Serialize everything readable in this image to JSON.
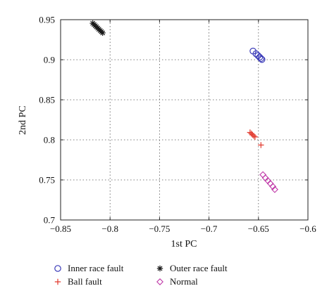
{
  "chart_data": {
    "type": "scatter",
    "xlabel": "1st PC",
    "ylabel": "2nd PC",
    "xlim": [
      -0.85,
      -0.6
    ],
    "ylim": [
      0.7,
      0.95
    ],
    "xticks": [
      -0.85,
      -0.8,
      -0.75,
      -0.7,
      -0.65,
      -0.6
    ],
    "yticks": [
      0.7,
      0.75,
      0.8,
      0.85,
      0.9,
      0.95
    ],
    "xtick_labels": [
      "−0.85",
      "−0.8",
      "−0.75",
      "−0.7",
      "−0.65",
      "−0.6"
    ],
    "ytick_labels": [
      "0.7",
      "0.75",
      "0.8",
      "0.85",
      "0.9",
      "0.95"
    ],
    "grid": true,
    "legend_position": "below-plot",
    "series": [
      {
        "name": "Inner race fault",
        "marker": "circle",
        "color": "#3a3ab8",
        "x": [
          -0.6555,
          -0.6525,
          -0.6505,
          -0.6488,
          -0.6475,
          -0.6465
        ],
        "y": [
          0.9108,
          0.9075,
          0.9052,
          0.9032,
          0.9015,
          0.9003
        ]
      },
      {
        "name": "Outer race fault",
        "marker": "asterisk",
        "color": "#1a1a1a",
        "x": [
          -0.8175,
          -0.8162,
          -0.815,
          -0.8138,
          -0.8125,
          -0.8113,
          -0.81,
          -0.8088,
          -0.8075
        ],
        "y": [
          0.9455,
          0.944,
          0.9425,
          0.941,
          0.9395,
          0.938,
          0.9365,
          0.935,
          0.9335
        ]
      },
      {
        "name": "Ball fault",
        "marker": "plus",
        "color": "#e23a2e",
        "x": [
          -0.6585,
          -0.6572,
          -0.656,
          -0.6548,
          -0.6535,
          -0.6475
        ],
        "y": [
          0.8092,
          0.8078,
          0.8064,
          0.805,
          0.8036,
          0.7935
        ]
      },
      {
        "name": "Normal",
        "marker": "diamond",
        "color": "#c03aa8",
        "x": [
          -0.6455,
          -0.643,
          -0.6405,
          -0.638,
          -0.6355,
          -0.6335
        ],
        "y": [
          0.7565,
          0.7525,
          0.749,
          0.7455,
          0.7418,
          0.738
        ]
      }
    ]
  }
}
